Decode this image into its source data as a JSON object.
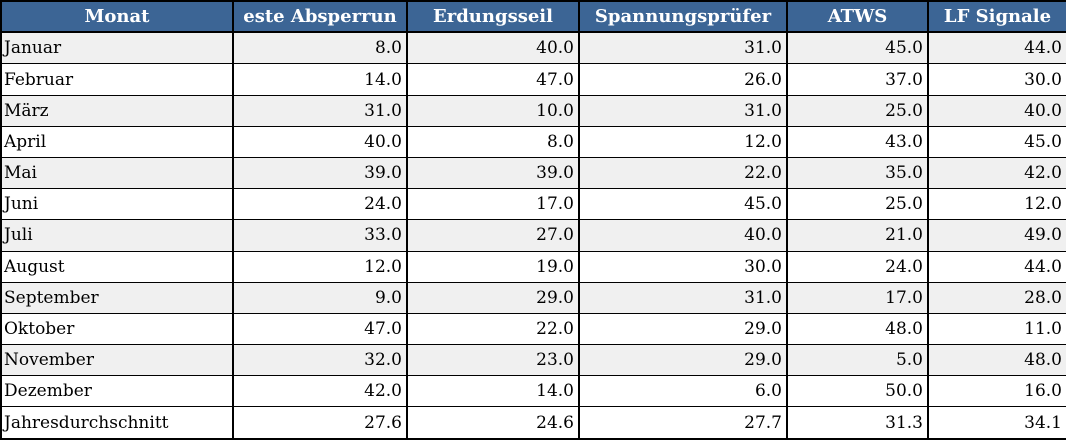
{
  "chart_data": {
    "type": "table",
    "title": "",
    "columns": [
      "Monat",
      "este Absperrun",
      "Erdungsseil",
      "Spannungsprüfer",
      "ATWS",
      "LF Signale"
    ],
    "rows": [
      {
        "label": "Januar",
        "values": [
          "8.0",
          "40.0",
          "31.0",
          "45.0",
          "44.0"
        ]
      },
      {
        "label": "Februar",
        "values": [
          "14.0",
          "47.0",
          "26.0",
          "37.0",
          "30.0"
        ]
      },
      {
        "label": "März",
        "values": [
          "31.0",
          "10.0",
          "31.0",
          "25.0",
          "40.0"
        ]
      },
      {
        "label": "April",
        "values": [
          "40.0",
          "8.0",
          "12.0",
          "43.0",
          "45.0"
        ]
      },
      {
        "label": "Mai",
        "values": [
          "39.0",
          "39.0",
          "22.0",
          "35.0",
          "42.0"
        ]
      },
      {
        "label": "Juni",
        "values": [
          "24.0",
          "17.0",
          "45.0",
          "25.0",
          "12.0"
        ]
      },
      {
        "label": "Juli",
        "values": [
          "33.0",
          "27.0",
          "40.0",
          "21.0",
          "49.0"
        ]
      },
      {
        "label": "August",
        "values": [
          "12.0",
          "19.0",
          "30.0",
          "24.0",
          "44.0"
        ]
      },
      {
        "label": "September",
        "values": [
          "9.0",
          "29.0",
          "31.0",
          "17.0",
          "28.0"
        ]
      },
      {
        "label": "Oktober",
        "values": [
          "47.0",
          "22.0",
          "29.0",
          "48.0",
          "11.0"
        ]
      },
      {
        "label": "November",
        "values": [
          "32.0",
          "23.0",
          "29.0",
          "5.0",
          "48.0"
        ]
      },
      {
        "label": "Dezember",
        "values": [
          "42.0",
          "14.0",
          "6.0",
          "50.0",
          "16.0"
        ]
      },
      {
        "label": "Jahresdurchschnitt",
        "values": [
          "27.6",
          "24.6",
          "27.7",
          "31.3",
          "34.1"
        ]
      }
    ],
    "colors": {
      "header_background": "#3c6595",
      "header_text": "#ffffff",
      "row_background": "#ffffff",
      "row_alt_background": "#f0f0f0",
      "border": "#000000",
      "cell_text": "#000000"
    },
    "layout_hints": {
      "alternating_rows": "odd data rows shaded, final average row white",
      "month_alignment": "left",
      "value_alignment": "right"
    }
  }
}
